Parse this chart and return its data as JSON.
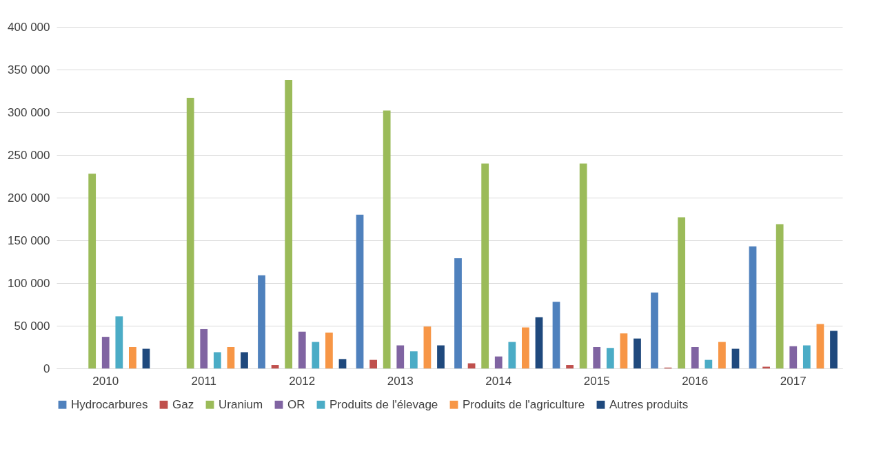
{
  "chart_data": {
    "type": "bar",
    "categories": [
      "2010",
      "2011",
      "2012",
      "2013",
      "2014",
      "2015",
      "2016",
      "2017"
    ],
    "series": [
      {
        "name": "Hydrocarbures",
        "color": "#4f81bd",
        "values": [
          null,
          null,
          109000,
          180000,
          129000,
          78000,
          89000,
          143000
        ]
      },
      {
        "name": "Gaz",
        "color": "#c0504d",
        "values": [
          null,
          null,
          4000,
          10000,
          6000,
          4000,
          1000,
          2000
        ]
      },
      {
        "name": "Uranium",
        "color": "#9bbb59",
        "values": [
          228000,
          317000,
          338000,
          302000,
          240000,
          240000,
          177000,
          169000
        ]
      },
      {
        "name": "OR",
        "color": "#8064a2",
        "values": [
          37000,
          46000,
          43000,
          27000,
          14000,
          25000,
          25000,
          26000
        ]
      },
      {
        "name": "Produits de l'élevage",
        "color": "#4bacc6",
        "values": [
          61000,
          19000,
          31000,
          20000,
          31000,
          24000,
          10000,
          27000
        ]
      },
      {
        "name": "Produits de l'agriculture",
        "color": "#f79646",
        "values": [
          25000,
          25000,
          42000,
          49000,
          48000,
          41000,
          31000,
          52000
        ]
      },
      {
        "name": "Autres produits",
        "color": "#1f497d",
        "values": [
          23000,
          19000,
          11000,
          27000,
          60000,
          35000,
          23000,
          44000
        ]
      }
    ],
    "ylim": [
      0,
      400000
    ],
    "yticks": [
      {
        "value": 0,
        "label": "0"
      },
      {
        "value": 50000,
        "label": "50 000"
      },
      {
        "value": 100000,
        "label": "100 000"
      },
      {
        "value": 150000,
        "label": "150 000"
      },
      {
        "value": 200000,
        "label": "200 000"
      },
      {
        "value": 250000,
        "label": "250 000"
      },
      {
        "value": 300000,
        "label": "300 000"
      },
      {
        "value": 350000,
        "label": "350 000"
      },
      {
        "value": 400000,
        "label": "400 000"
      }
    ],
    "grid": "y",
    "legend": "bottom"
  }
}
